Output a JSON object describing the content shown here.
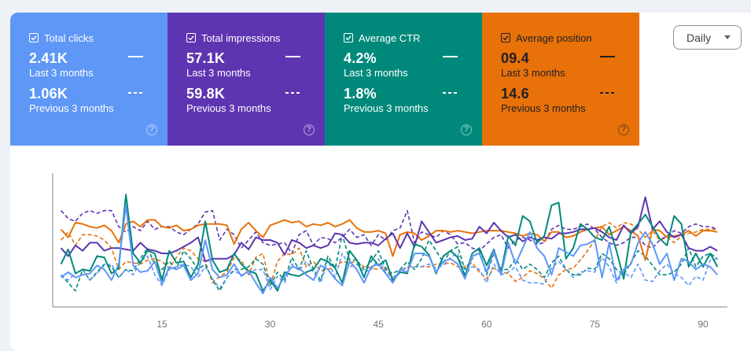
{
  "colors": {
    "page_bg": "#eef2f6",
    "clicks": "#5e97f6",
    "impressions": "#5e35b1",
    "ctr": "#00897b",
    "position": "#e8710a",
    "axis": "#9e9e9e",
    "tick_text": "#70757a"
  },
  "metrics": [
    {
      "id": "clicks",
      "label": "Total clicks",
      "checked": true,
      "current_value": "2.41K",
      "current_label": "Last 3 months",
      "previous_value": "1.06K",
      "previous_label": "Previous 3 months",
      "help_icon": "?"
    },
    {
      "id": "impressions",
      "label": "Total impressions",
      "checked": true,
      "current_value": "57.1K",
      "current_label": "Last 3 months",
      "previous_value": "59.8K",
      "previous_label": "Previous 3 months",
      "help_icon": "?"
    },
    {
      "id": "ctr",
      "label": "Average CTR",
      "checked": true,
      "current_value": "4.2%",
      "current_label": "Last 3 months",
      "previous_value": "1.8%",
      "previous_label": "Previous 3 months",
      "help_icon": "?"
    },
    {
      "id": "position",
      "label": "Average position",
      "checked": true,
      "current_value": "09.4",
      "current_label": "Last 3 months",
      "previous_value": "14.6",
      "previous_label": "Previous 3 months",
      "help_icon": "?"
    }
  ],
  "granularity": {
    "selected": "Daily"
  },
  "chart_data": {
    "type": "line",
    "title": "",
    "xlabel": "",
    "ylabel": "",
    "x_range": [
      0,
      93
    ],
    "y_range": [
      0,
      100
    ],
    "y_note": "relative plot scale (no y-axis labels shown)",
    "x_ticks": [
      15,
      30,
      45,
      60,
      75,
      90
    ],
    "grid": false,
    "legend": "metric tiles above chart (solid = last 3 months, dashed = previous 3 months)",
    "x": [
      1,
      2,
      3,
      4,
      5,
      6,
      7,
      8,
      9,
      10,
      11,
      12,
      13,
      14,
      15,
      16,
      17,
      18,
      19,
      20,
      21,
      22,
      23,
      24,
      25,
      26,
      27,
      28,
      29,
      30,
      31,
      32,
      33,
      34,
      35,
      36,
      37,
      38,
      39,
      40,
      41,
      42,
      43,
      44,
      45,
      46,
      47,
      48,
      49,
      50,
      51,
      52,
      53,
      54,
      55,
      56,
      57,
      58,
      59,
      60,
      61,
      62,
      63,
      64,
      65,
      66,
      67,
      68,
      69,
      70,
      71,
      72,
      73,
      74,
      75,
      76,
      77,
      78,
      79,
      80,
      81,
      82,
      83,
      84,
      85,
      86,
      87,
      88,
      89,
      90,
      91,
      92
    ],
    "series": [
      {
        "name": "Average position — Last 3 months",
        "metric": "position",
        "style": "solid",
        "values": [
          58,
          52,
          63,
          62,
          60,
          59,
          61,
          57,
          48,
          62,
          64,
          60,
          65,
          65,
          60,
          59,
          61,
          57,
          58,
          61,
          62,
          62,
          62,
          61,
          47,
          58,
          63,
          57,
          52,
          61,
          63,
          65,
          63,
          64,
          60,
          62,
          61,
          63,
          60,
          62,
          65,
          59,
          56,
          56,
          57,
          55,
          38,
          54,
          56,
          55,
          50,
          53,
          57,
          57,
          56,
          57,
          56,
          55,
          56,
          57,
          57,
          57,
          56,
          55,
          53,
          55,
          54,
          49,
          56,
          56,
          52,
          53,
          56,
          58,
          59,
          60,
          54,
          57,
          60,
          57,
          53,
          35,
          58,
          57,
          52,
          53,
          54,
          57,
          53,
          57,
          57,
          56
        ]
      },
      {
        "name": "Average position — Previous 3 months",
        "metric": "position",
        "style": "dashed",
        "values": [
          50,
          56,
          46,
          54,
          54,
          53,
          50,
          44,
          28,
          34,
          33,
          32,
          35,
          36,
          34,
          29,
          37,
          44,
          42,
          36,
          34,
          18,
          23,
          26,
          37,
          35,
          24,
          37,
          40,
          16,
          34,
          40,
          39,
          44,
          30,
          34,
          27,
          28,
          30,
          34,
          33,
          34,
          30,
          29,
          28,
          30,
          19,
          27,
          30,
          30,
          30,
          30,
          32,
          32,
          33,
          30,
          30,
          33,
          26,
          21,
          29,
          26,
          25,
          19,
          22,
          27,
          25,
          21,
          14,
          24,
          28,
          29,
          35,
          42,
          50,
          60,
          63,
          59,
          63,
          62,
          58,
          52,
          57,
          50,
          52,
          48,
          53,
          55,
          56,
          58,
          58,
          58
        ]
      },
      {
        "name": "Total impressions — Last 3 months",
        "metric": "impressions",
        "style": "solid",
        "values": [
          44,
          38,
          46,
          42,
          48,
          48,
          42,
          44,
          44,
          43,
          42,
          48,
          43,
          42,
          40,
          40,
          42,
          45,
          48,
          52,
          34,
          36,
          36,
          36,
          39,
          48,
          43,
          52,
          50,
          50,
          48,
          39,
          50,
          48,
          44,
          46,
          44,
          46,
          55,
          54,
          48,
          47,
          48,
          48,
          46,
          51,
          55,
          44,
          55,
          45,
          64,
          56,
          48,
          50,
          52,
          53,
          50,
          51,
          60,
          55,
          63,
          57,
          52,
          54,
          49,
          52,
          50,
          52,
          51,
          55,
          55,
          56,
          58,
          58,
          59,
          56,
          52,
          50,
          61,
          55,
          60,
          82,
          58,
          64,
          56,
          52,
          54,
          44,
          42,
          42,
          45,
          42
        ]
      },
      {
        "name": "Total impressions — Previous 3 months",
        "metric": "impressions",
        "style": "dashed",
        "values": [
          72,
          66,
          64,
          70,
          72,
          70,
          72,
          72,
          60,
          56,
          60,
          57,
          64,
          58,
          60,
          60,
          56,
          54,
          58,
          62,
          71,
          72,
          50,
          58,
          54,
          44,
          50,
          56,
          48,
          46,
          47,
          48,
          40,
          54,
          57,
          46,
          52,
          51,
          48,
          52,
          58,
          52,
          54,
          46,
          54,
          50,
          57,
          59,
          72,
          48,
          56,
          54,
          52,
          57,
          54,
          47,
          48,
          44,
          42,
          47,
          52,
          54,
          44,
          50,
          52,
          50,
          47,
          48,
          58,
          61,
          58,
          58,
          60,
          62,
          58,
          52,
          48,
          46,
          48,
          52,
          52,
          46,
          44,
          50,
          53,
          57,
          55,
          60,
          62,
          60,
          60,
          58
        ]
      },
      {
        "name": "Average CTR — Last 3 months",
        "metric": "ctr",
        "style": "solid",
        "values": [
          32,
          43,
          25,
          28,
          27,
          38,
          37,
          25,
          29,
          84,
          40,
          33,
          42,
          40,
          20,
          42,
          33,
          34,
          22,
          32,
          64,
          35,
          26,
          28,
          40,
          32,
          27,
          25,
          12,
          20,
          12,
          26,
          24,
          23,
          26,
          28,
          36,
          34,
          29,
          18,
          42,
          35,
          22,
          38,
          31,
          35,
          20,
          26,
          25,
          47,
          45,
          39,
          25,
          38,
          42,
          37,
          23,
          40,
          44,
          31,
          43,
          26,
          53,
          46,
          68,
          64,
          48,
          53,
          76,
          78,
          36,
          44,
          62,
          58,
          52,
          50,
          60,
          42,
          21,
          56,
          62,
          69,
          60,
          51,
          46,
          68,
          62,
          30,
          40,
          30,
          40,
          30
        ]
      },
      {
        "name": "Average CTR — Previous 3 months",
        "metric": "ctr",
        "style": "dashed",
        "values": [
          24,
          18,
          12,
          28,
          20,
          26,
          32,
          30,
          22,
          28,
          27,
          36,
          44,
          32,
          28,
          34,
          28,
          42,
          36,
          28,
          32,
          20,
          12,
          22,
          28,
          28,
          30,
          36,
          32,
          16,
          26,
          20,
          37,
          28,
          42,
          28,
          20,
          38,
          29,
          54,
          35,
          35,
          28,
          34,
          42,
          28,
          25,
          28,
          34,
          28,
          36,
          50,
          42,
          33,
          42,
          45,
          28,
          36,
          42,
          24,
          40,
          28,
          28,
          36,
          28,
          32,
          28,
          22,
          33,
          38,
          28,
          24,
          24,
          29,
          28,
          40,
          36,
          28,
          24,
          33,
          42,
          38,
          31,
          24,
          24,
          26,
          32,
          44,
          30,
          38,
          40,
          36
        ]
      },
      {
        "name": "Total clicks — Last 3 months",
        "metric": "clicks",
        "style": "solid",
        "values": [
          22,
          26,
          22,
          24,
          25,
          31,
          28,
          20,
          32,
          76,
          31,
          26,
          27,
          34,
          17,
          30,
          28,
          31,
          20,
          25,
          50,
          28,
          22,
          24,
          32,
          23,
          27,
          18,
          10,
          22,
          14,
          23,
          30,
          29,
          24,
          20,
          31,
          28,
          21,
          16,
          34,
          28,
          18,
          30,
          32,
          25,
          18,
          28,
          26,
          40,
          40,
          38,
          26,
          34,
          36,
          32,
          21,
          38,
          40,
          26,
          42,
          24,
          48,
          32,
          44,
          56,
          44,
          38,
          24,
          44,
          41,
          38,
          46,
          47,
          50,
          22,
          48,
          20,
          28,
          32,
          48,
          56,
          47,
          32,
          40,
          20,
          36,
          34,
          28,
          32,
          30,
          24
        ]
      },
      {
        "name": "Total clicks — Previous 3 months",
        "metric": "clicks",
        "style": "dashed",
        "values": [
          24,
          20,
          25,
          28,
          20,
          25,
          31,
          32,
          22,
          28,
          24,
          34,
          38,
          24,
          16,
          28,
          30,
          32,
          30,
          22,
          30,
          21,
          14,
          22,
          27,
          24,
          25,
          28,
          28,
          13,
          23,
          18,
          32,
          27,
          34,
          26,
          18,
          35,
          22,
          40,
          30,
          32,
          26,
          28,
          36,
          26,
          22,
          26,
          30,
          30,
          30,
          32,
          29,
          31,
          37,
          40,
          24,
          30,
          28,
          18,
          32,
          24,
          26,
          30,
          20,
          18,
          18,
          17,
          29,
          34,
          28,
          22,
          26,
          27,
          26,
          37,
          30,
          18,
          26,
          22,
          32,
          20,
          19,
          27,
          32,
          25,
          22,
          16,
          23,
          20,
          35,
          36
        ]
      }
    ]
  }
}
